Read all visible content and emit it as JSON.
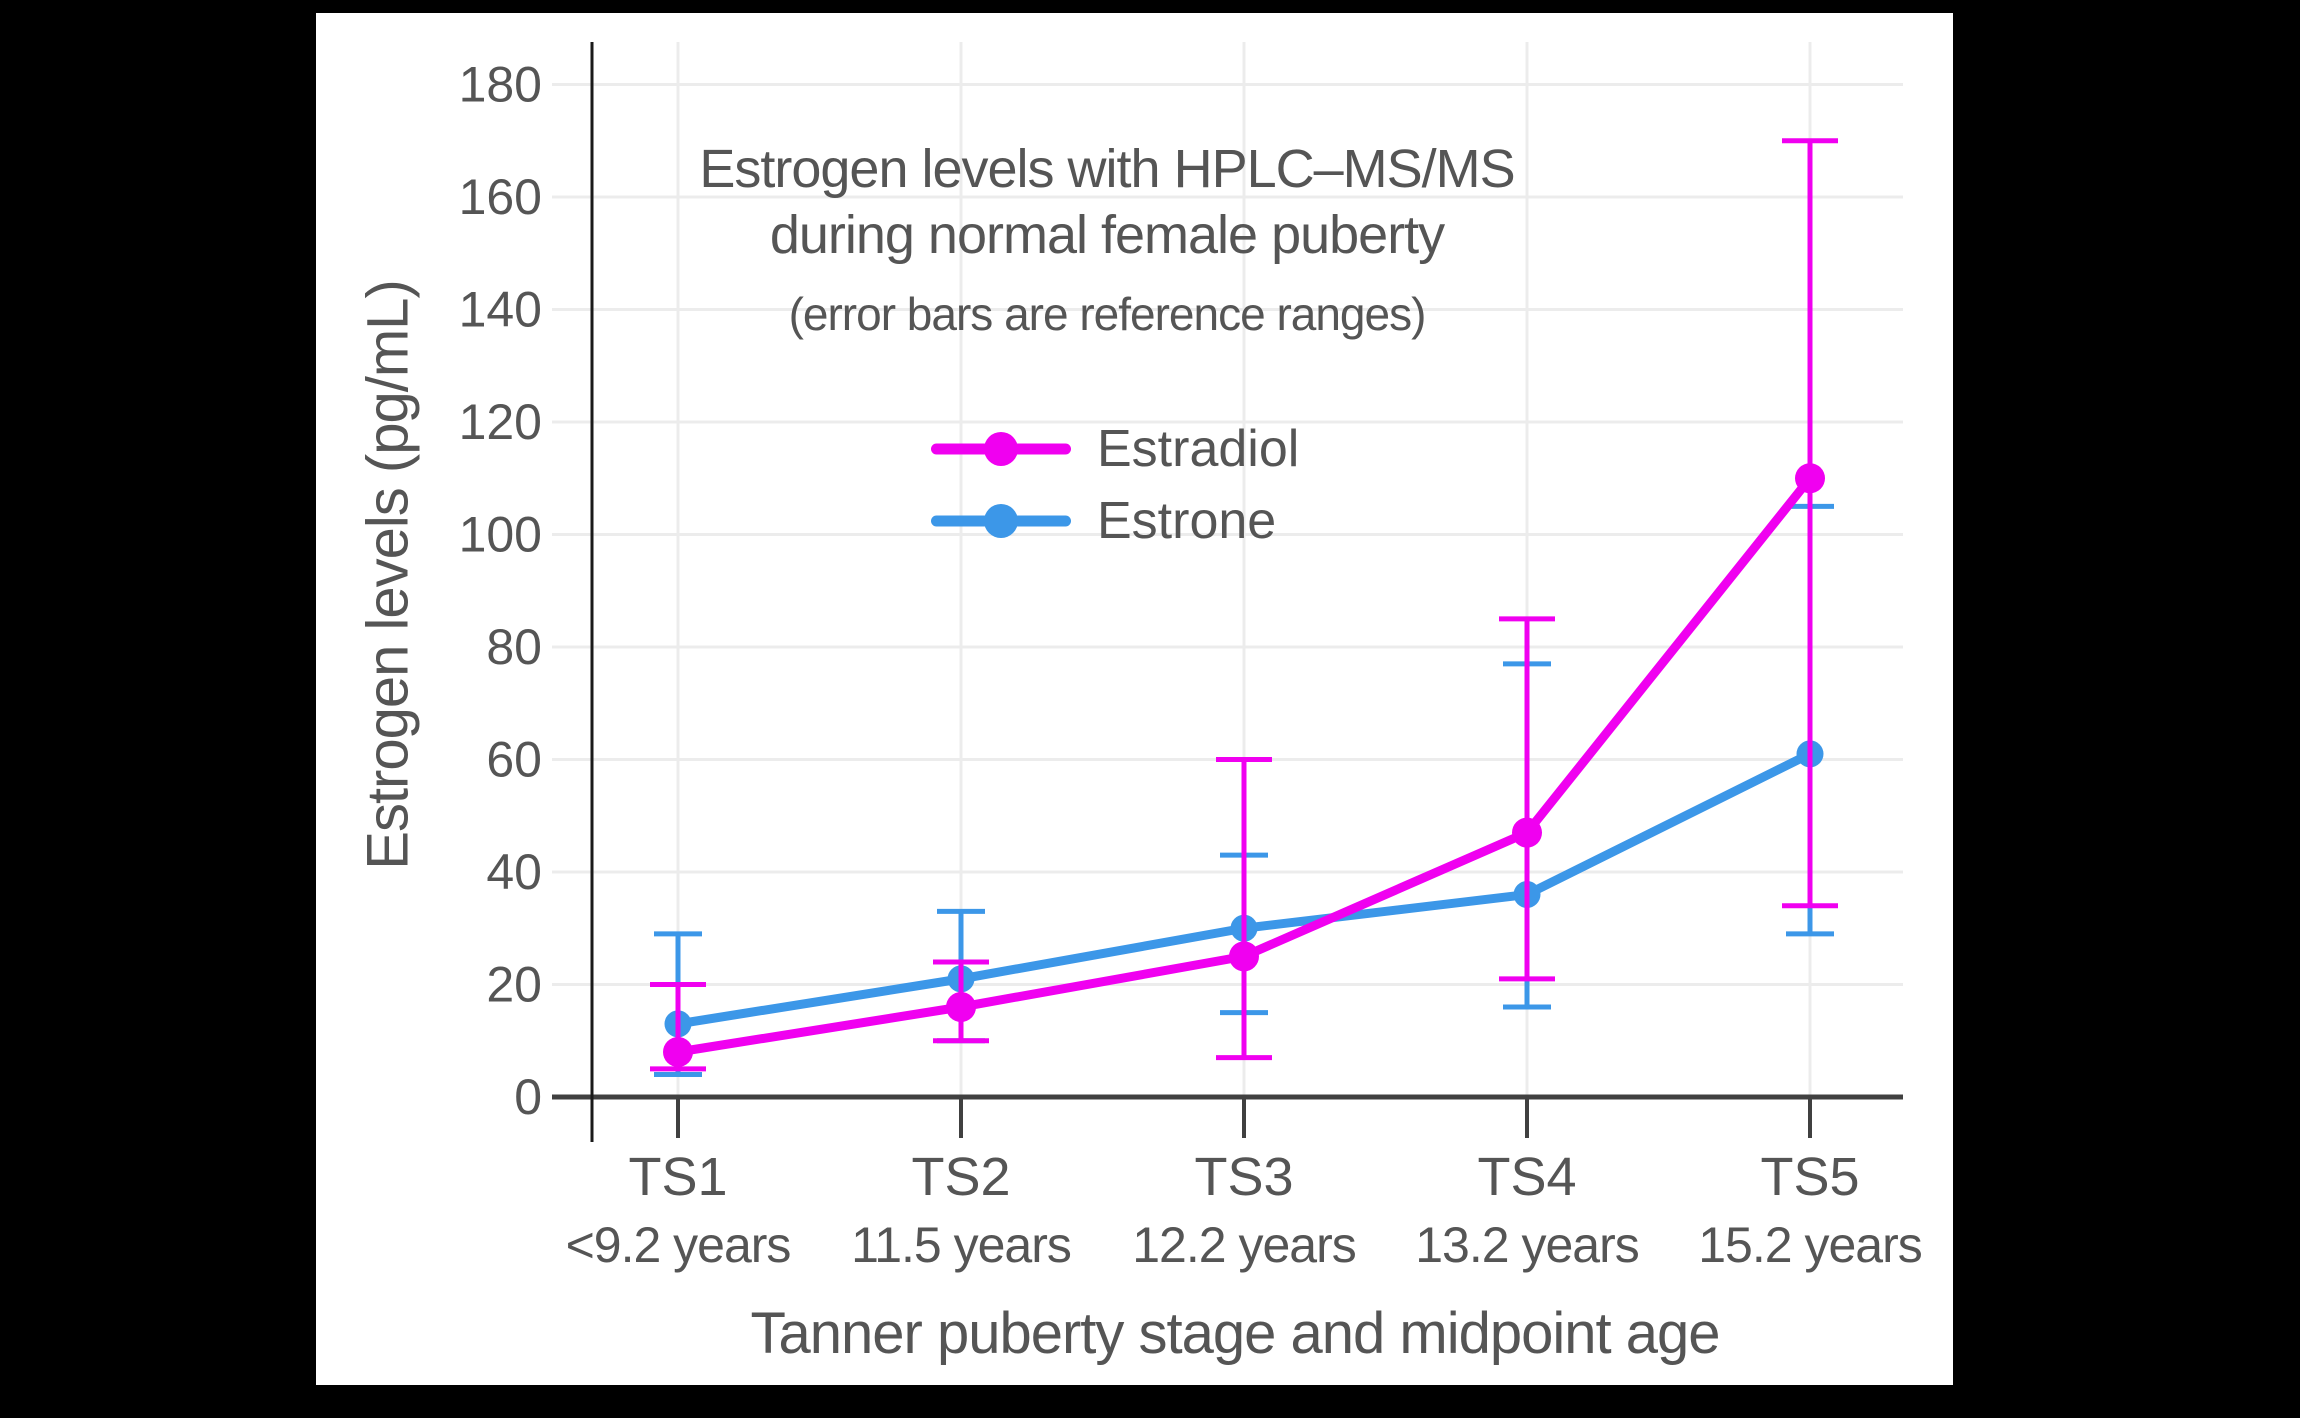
{
  "figure": {
    "outer_background": "#000000",
    "panel_background": "#FFFFFF"
  },
  "title": {
    "line1": "Estrogen levels with HPLC–MS/MS",
    "line2": "during normal female puberty",
    "subtitle": "(error bars are reference ranges)"
  },
  "legend": {
    "items": [
      {
        "label": "Estradiol",
        "color": "#F000F0"
      },
      {
        "label": "Estrone",
        "color": "#3C97E8"
      }
    ]
  },
  "axes": {
    "y_title": "Estrogen levels (pg/mL)",
    "x_title": "Tanner puberty stage and midpoint age"
  },
  "chart_data": {
    "type": "line",
    "title": "Estrogen levels with HPLC–MS/MS during normal female puberty",
    "subtitle": "(error bars are reference ranges)",
    "xlabel": "Tanner puberty stage and midpoint age",
    "ylabel": "Estrogen levels (pg/mL)",
    "categories": [
      "TS1",
      "TS2",
      "TS3",
      "TS4",
      "TS5"
    ],
    "category_sublabels": [
      "<9.2 years",
      "11.5 years",
      "12.2 years",
      "13.2 years",
      "15.2 years"
    ],
    "yticks": [
      0,
      20,
      40,
      60,
      80,
      100,
      120,
      140,
      160,
      180
    ],
    "ylim": [
      0,
      190
    ],
    "grid": true,
    "legend_position": "upper-center-inside",
    "error_bars": "reference ranges",
    "series": [
      {
        "name": "Estradiol",
        "color": "#F000F0",
        "values": [
          8,
          16,
          25,
          47,
          110
        ],
        "error_low": [
          5,
          10,
          7,
          21,
          34
        ],
        "error_high": [
          20,
          24,
          60,
          85,
          170
        ]
      },
      {
        "name": "Estrone",
        "color": "#3C97E8",
        "values": [
          13,
          21,
          30,
          36,
          61
        ],
        "error_low": [
          4,
          10,
          15,
          16,
          29
        ],
        "error_high": [
          29,
          33,
          43,
          77,
          105
        ]
      }
    ],
    "gridline_color": "#ECECEC",
    "text_color": "#555555",
    "x_axis_color": "#404040",
    "y_axis_color": "#1A1A1A"
  }
}
